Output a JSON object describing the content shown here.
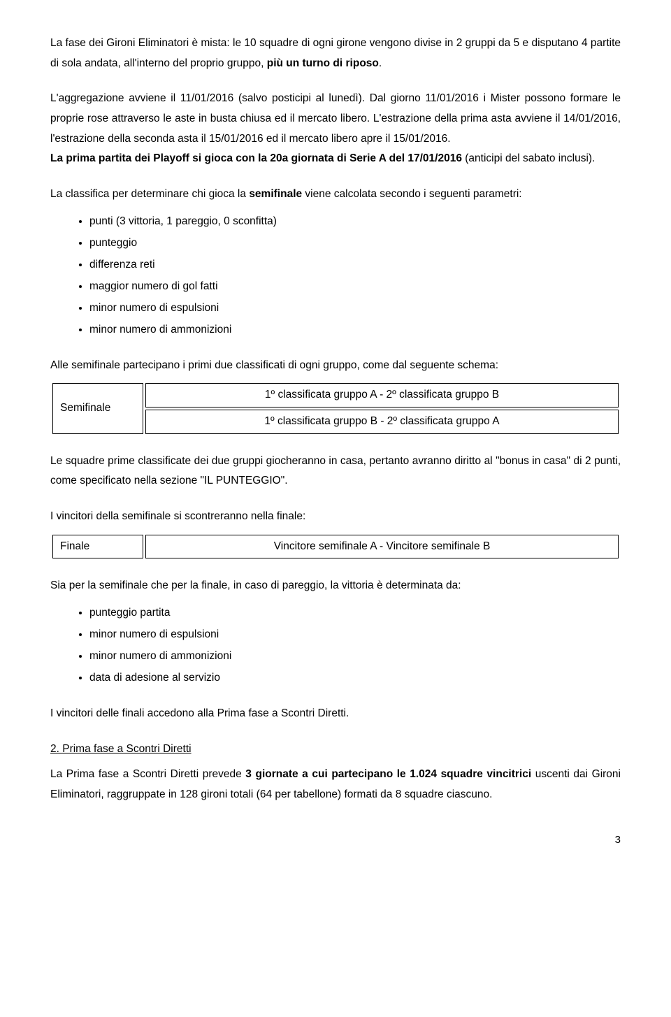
{
  "colors": {
    "text": "#000000",
    "background": "#ffffff",
    "border": "#000000"
  },
  "typography": {
    "body_fontsize_pt": 12,
    "line_height": 1.85,
    "font_family": "Trebuchet MS"
  },
  "p1": {
    "t1": "La fase dei Gironi Eliminatori è mista: le 10 squadre di ogni girone vengono divise in 2 gruppi da 5 e disputano 4 partite di sola andata, all'interno del proprio gruppo, ",
    "b1": "più un turno di riposo",
    "t2": "."
  },
  "p2": "L'aggregazione avviene il 11/01/2016 (salvo posticipi al lunedì). Dal giorno 11/01/2016 i Mister possono formare le proprie rose attraverso le aste in busta chiusa ed il mercato libero. L'estrazione della prima asta avviene il 14/01/2016, l'estrazione della seconda asta il 15/01/2016 ed il mercato libero apre il 15/01/2016.",
  "p2b": {
    "t1": "La prima partita dei Playoff si gioca con la 20a giornata di Serie A del 17/01/2016",
    "t2": " (anticipi del sabato inclusi)."
  },
  "p3": {
    "t1": "La classifica per determinare chi gioca la ",
    "b1": "semifinale",
    "t2": " viene calcolata secondo i seguenti parametri:"
  },
  "bullets1": {
    "i0": "punti (3 vittoria, 1 pareggio, 0 sconfitta)",
    "i1": "punteggio",
    "i2": "differenza reti",
    "i3": "maggior numero di gol fatti",
    "i4": "minor numero di espulsioni",
    "i5": "minor numero di ammonizioni"
  },
  "p4": "Alle semifinale partecipano i primi due classificati di ogni gruppo, come dal seguente schema:",
  "table1": {
    "label": "Semifinale",
    "r0": "1º classificata gruppo A - 2º classificata gruppo B",
    "r1": "1º classificata gruppo B - 2º classificata gruppo A"
  },
  "p5": "Le squadre prime classificate dei due gruppi giocheranno in casa, pertanto avranno diritto al \"bonus in casa\" di 2 punti, come specificato nella sezione \"IL PUNTEGGIO\".",
  "p6": "I vincitori della semifinale si scontreranno nella finale:",
  "table2": {
    "label": "Finale",
    "r0": "Vincitore semifinale A - Vincitore semifinale B"
  },
  "p7": "Sia per la semifinale che per la finale, in caso di pareggio, la vittoria è determinata da:",
  "bullets2": {
    "i0": "punteggio partita",
    "i1": "minor numero di espulsioni",
    "i2": "minor numero di ammonizioni",
    "i3": "data di adesione al servizio"
  },
  "p8": "I vincitori delle finali accedono alla Prima fase a Scontri Diretti.",
  "h2": "2. Prima fase a Scontri Diretti",
  "p9": {
    "t1": "La Prima fase a Scontri Diretti prevede ",
    "b1": "3 giornate a cui partecipano le 1.024 squadre vincitrici",
    "t2": " uscenti dai Gironi Eliminatori, raggruppate in 128 gironi totali (64 per tabellone) formati da 8 squadre ciascuno."
  },
  "page_number": "3"
}
